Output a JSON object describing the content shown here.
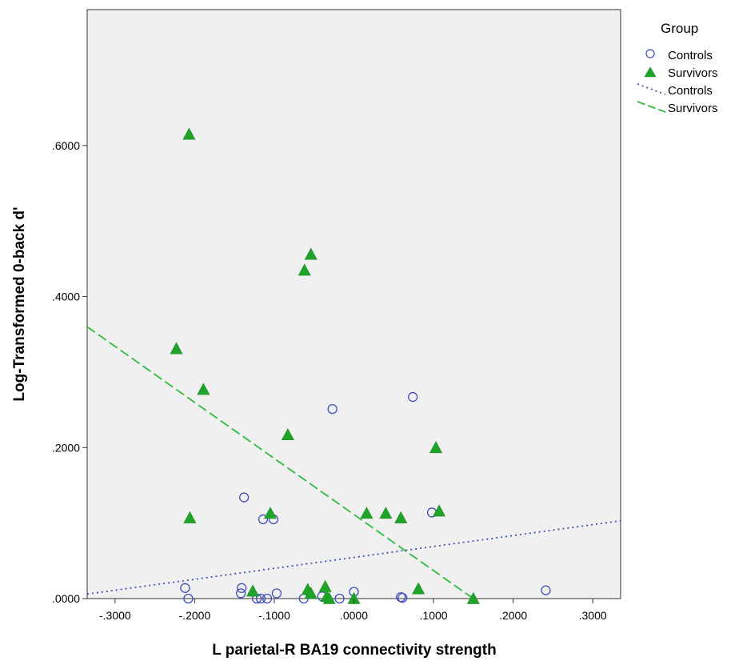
{
  "chart_data": {
    "type": "scatter",
    "xlabel": "L parietal-R BA19 connectivity strength",
    "ylabel": "Log-Transformed 0-back d'",
    "xlim": [
      -0.335,
      0.335
    ],
    "ylim": [
      0.0,
      0.78
    ],
    "xticks": [
      -0.3,
      -0.2,
      -0.1,
      0.0,
      0.1,
      0.2,
      0.3
    ],
    "xtick_labels": [
      "-.3000",
      "-.2000",
      "-.1000",
      ".0000",
      ".1000",
      ".2000",
      ".3000"
    ],
    "yticks": [
      0.0,
      0.2,
      0.4,
      0.6
    ],
    "ytick_labels": [
      ".0000",
      ".2000",
      ".4000",
      ".6000"
    ],
    "grid": false,
    "background": "#f0f0f0",
    "legend": {
      "title": "Group",
      "position": "right",
      "entries": [
        {
          "label": "Controls",
          "kind": "marker",
          "marker": "circle",
          "color": "#3f4fb8"
        },
        {
          "label": "Survivors",
          "kind": "marker",
          "marker": "triangle",
          "color": "#1fa329"
        },
        {
          "label": "Controls",
          "kind": "line",
          "dash": "dotted",
          "color": "#3f4fb8"
        },
        {
          "label": "Survivors",
          "kind": "line",
          "dash": "dashed",
          "color": "#2fbb3f"
        }
      ]
    },
    "series": [
      {
        "name": "Controls",
        "marker": "circle",
        "color": "#3f4fb8",
        "points": [
          {
            "x": -0.212,
            "y": 0.014
          },
          {
            "x": -0.208,
            "y": 0.0
          },
          {
            "x": -0.142,
            "y": 0.007
          },
          {
            "x": -0.141,
            "y": 0.014
          },
          {
            "x": -0.138,
            "y": 0.134
          },
          {
            "x": -0.122,
            "y": 0.0
          },
          {
            "x": -0.117,
            "y": 0.0
          },
          {
            "x": -0.114,
            "y": 0.105
          },
          {
            "x": -0.109,
            "y": 0.0
          },
          {
            "x": -0.101,
            "y": 0.105
          },
          {
            "x": -0.097,
            "y": 0.007
          },
          {
            "x": -0.063,
            "y": 0.0
          },
          {
            "x": -0.027,
            "y": 0.251
          },
          {
            "x": -0.04,
            "y": 0.003
          },
          {
            "x": -0.018,
            "y": 0.0
          },
          {
            "x": 0.0,
            "y": 0.009
          },
          {
            "x": 0.059,
            "y": 0.002
          },
          {
            "x": 0.061,
            "y": 0.001
          },
          {
            "x": 0.074,
            "y": 0.267
          },
          {
            "x": 0.098,
            "y": 0.114
          },
          {
            "x": 0.241,
            "y": 0.011
          }
        ]
      },
      {
        "name": "Survivors",
        "marker": "triangle",
        "color": "#1fa329",
        "points": [
          {
            "x": -0.207,
            "y": 0.615
          },
          {
            "x": -0.223,
            "y": 0.331
          },
          {
            "x": -0.189,
            "y": 0.277
          },
          {
            "x": -0.206,
            "y": 0.107
          },
          {
            "x": -0.127,
            "y": 0.01
          },
          {
            "x": -0.105,
            "y": 0.113
          },
          {
            "x": -0.083,
            "y": 0.217
          },
          {
            "x": -0.062,
            "y": 0.435
          },
          {
            "x": -0.054,
            "y": 0.456
          },
          {
            "x": -0.058,
            "y": 0.012
          },
          {
            "x": -0.054,
            "y": 0.007
          },
          {
            "x": -0.036,
            "y": 0.016
          },
          {
            "x": -0.034,
            "y": 0.003
          },
          {
            "x": -0.031,
            "y": 0.0
          },
          {
            "x": 0.0,
            "y": 0.0
          },
          {
            "x": 0.016,
            "y": 0.113
          },
          {
            "x": 0.04,
            "y": 0.113
          },
          {
            "x": 0.059,
            "y": 0.107
          },
          {
            "x": 0.081,
            "y": 0.013
          },
          {
            "x": 0.103,
            "y": 0.2
          },
          {
            "x": 0.107,
            "y": 0.116
          },
          {
            "x": 0.15,
            "y": 0.0
          }
        ]
      }
    ],
    "fit_lines": [
      {
        "name": "Controls",
        "dash": "dotted",
        "color": "#3f4fb8",
        "x": [
          -0.335,
          0.335
        ],
        "y": [
          0.006,
          0.103
        ]
      },
      {
        "name": "Survivors",
        "dash": "dashed",
        "color": "#2fbb3f",
        "x": [
          -0.335,
          0.15
        ],
        "y": [
          0.36,
          0.0
        ]
      }
    ]
  }
}
